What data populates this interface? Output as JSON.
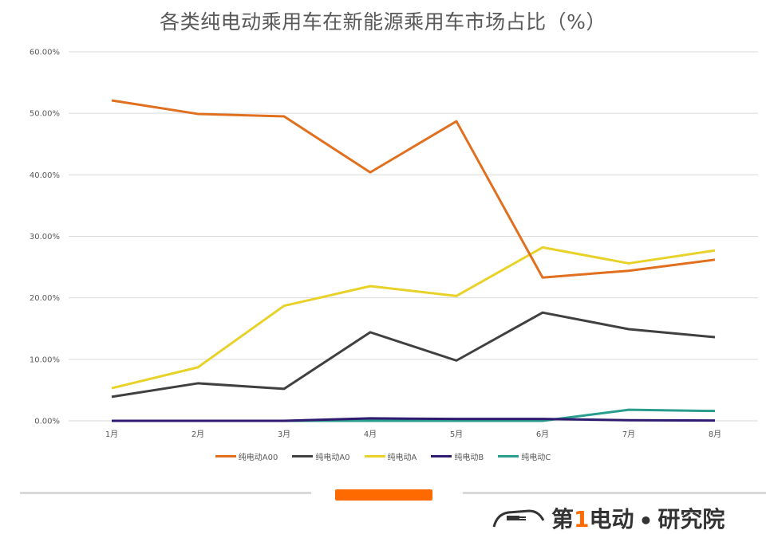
{
  "chart_data": {
    "type": "line",
    "title": "各类纯电动乘用车在新能源乘用车市场占比（%）",
    "xlabel": "",
    "ylabel": "",
    "categories": [
      "1月",
      "2月",
      "3月",
      "4月",
      "5月",
      "6月",
      "7月",
      "8月"
    ],
    "ylim": [
      0,
      60
    ],
    "yticks": [
      "0.00%",
      "10.00%",
      "20.00%",
      "30.00%",
      "40.00%",
      "50.00%",
      "60.00%"
    ],
    "grid": true,
    "legend_position": "bottom",
    "series": [
      {
        "name": "纯电动A00",
        "color": "#e07020",
        "values": [
          52.1,
          49.9,
          49.5,
          40.4,
          48.7,
          23.3,
          24.4,
          26.2
        ]
      },
      {
        "name": "纯电动A0",
        "color": "#404040",
        "values": [
          3.9,
          6.1,
          5.2,
          14.4,
          9.8,
          17.6,
          14.9,
          13.6
        ]
      },
      {
        "name": "纯电动A",
        "color": "#e8d22a",
        "values": [
          5.3,
          8.7,
          18.7,
          21.9,
          20.3,
          28.2,
          25.6,
          27.7
        ]
      },
      {
        "name": "纯电动B",
        "color": "#2e1a6e",
        "values": [
          0.0,
          0.0,
          0.0,
          0.4,
          0.3,
          0.3,
          0.1,
          0.05
        ]
      },
      {
        "name": "纯电动C",
        "color": "#2a9d8f",
        "values": [
          0.0,
          0.0,
          0.0,
          0.0,
          0.0,
          0.0,
          1.8,
          1.6
        ]
      }
    ]
  },
  "footer": {
    "brand_prefix": "第",
    "brand_num": "1",
    "brand_mid": "电动",
    "brand_dot": "•",
    "brand_suffix": "研究院"
  }
}
